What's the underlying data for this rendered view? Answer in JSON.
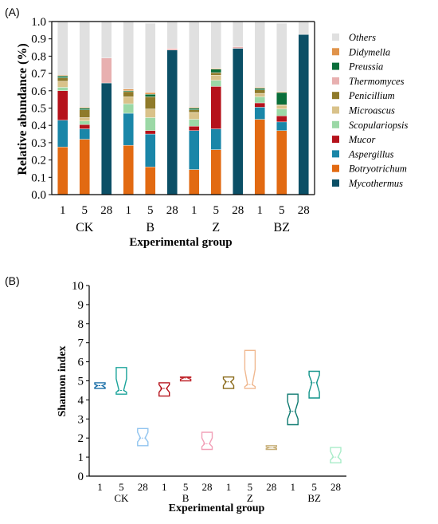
{
  "chart_data": [
    {
      "panel_label": "(A)",
      "type": "bar",
      "stacked": true,
      "xlabel": "Experimental group",
      "ylabel": "Relative abundance (%)",
      "ylim": [
        0,
        1.0
      ],
      "yticks": [
        "0.0",
        "0.1",
        "0.2",
        "0.3",
        "0.4",
        "0.5",
        "0.6",
        "0.7",
        "0.8",
        "0.9",
        "1.0"
      ],
      "categories": [
        "1",
        "5",
        "28",
        "1",
        "5",
        "28",
        "1",
        "5",
        "28",
        "1",
        "5",
        "28"
      ],
      "groups": [
        "CK",
        "B",
        "Z",
        "BZ"
      ],
      "legend_position": "right",
      "series": [
        {
          "name": "Mycothermus",
          "color": "#0b4f66",
          "values": [
            0,
            0,
            0.645,
            0,
            0,
            0.835,
            0,
            0,
            0.845,
            0,
            0,
            0.925
          ]
        },
        {
          "name": "Botryotrichum",
          "color": "#e26a12",
          "values": [
            0.275,
            0.32,
            0,
            0.285,
            0.16,
            0,
            0.145,
            0.26,
            0,
            0.435,
            0.37,
            0
          ]
        },
        {
          "name": "Aspergillus",
          "color": "#1a86a8",
          "values": [
            0.155,
            0.06,
            0,
            0.185,
            0.19,
            0,
            0.225,
            0.12,
            0,
            0.07,
            0.05,
            0
          ]
        },
        {
          "name": "Mucor",
          "color": "#b5121b",
          "values": [
            0.17,
            0.025,
            0,
            0,
            0.02,
            0,
            0.025,
            0.245,
            0,
            0.025,
            0.035,
            0
          ]
        },
        {
          "name": "Scopulariopsis",
          "color": "#9bd8a6",
          "values": [
            0.02,
            0.02,
            0,
            0.055,
            0.075,
            0,
            0.04,
            0.035,
            0,
            0.035,
            0.04,
            0
          ]
        },
        {
          "name": "Microascus",
          "color": "#d9c28a",
          "values": [
            0.035,
            0.02,
            0,
            0.04,
            0.05,
            0,
            0.04,
            0.03,
            0,
            0.02,
            0.02,
            0
          ]
        },
        {
          "name": "Penicillium",
          "color": "#8f7a2a",
          "values": [
            0.02,
            0.045,
            0,
            0.03,
            0.07,
            0,
            0.015,
            0.015,
            0,
            0.02,
            0.005,
            0
          ]
        },
        {
          "name": "Thermomyces",
          "color": "#e8b0b0",
          "values": [
            0,
            0,
            0.145,
            0,
            0,
            0.01,
            0,
            0,
            0.01,
            0,
            0,
            0
          ]
        },
        {
          "name": "Preussia",
          "color": "#0a6e3a",
          "values": [
            0.01,
            0.01,
            0,
            0.005,
            0.015,
            0,
            0.01,
            0.02,
            0,
            0.01,
            0.07,
            0
          ]
        },
        {
          "name": "Didymella",
          "color": "#e0934a",
          "values": [
            0.005,
            0.005,
            0,
            0.01,
            0.01,
            0,
            0.005,
            0.005,
            0,
            0.005,
            0.005,
            0
          ]
        },
        {
          "name": "Others",
          "color": "#e0e0e0",
          "values": [
            0.31,
            0.495,
            0.21,
            0.39,
            0.4,
            0.155,
            0.495,
            0.27,
            0.145,
            0.38,
            0.395,
            0.075
          ]
        }
      ]
    },
    {
      "panel_label": "(B)",
      "type": "violin",
      "xlabel": "Experimental group",
      "ylabel": "Shannon index",
      "ylim": [
        0,
        10
      ],
      "yticks": [
        "0",
        "1",
        "2",
        "3",
        "4",
        "5",
        "6",
        "7",
        "8",
        "9",
        "10"
      ],
      "categories": [
        "1",
        "5",
        "28",
        "1",
        "5",
        "28",
        "1",
        "5",
        "28",
        "1",
        "5",
        "28"
      ],
      "groups": [
        "CK",
        "B",
        "Z",
        "BZ"
      ],
      "colors": [
        "#1b6fa8",
        "#1aa39a",
        "#90c4ef",
        "#b5121b",
        "#c0272d",
        "#f2a0b8",
        "#8a6a1a",
        "#f0b890",
        "#c8b07a",
        "#0e7a70",
        "#12948a",
        "#a8ecc8"
      ],
      "distributions": [
        {
          "min": 4.6,
          "max": 4.9,
          "median": 4.75,
          "q1": 4.65,
          "q3": 4.82
        },
        {
          "min": 4.3,
          "max": 5.7,
          "median": 4.5,
          "q1": 4.4,
          "q3": 5.1
        },
        {
          "min": 1.6,
          "max": 2.5,
          "median": 2.0,
          "q1": 1.8,
          "q3": 2.3
        },
        {
          "min": 4.2,
          "max": 4.9,
          "median": 4.6,
          "q1": 4.4,
          "q3": 4.8
        },
        {
          "min": 5.0,
          "max": 5.2,
          "median": 5.15,
          "q1": 5.08,
          "q3": 5.18
        },
        {
          "min": 1.4,
          "max": 2.3,
          "median": 1.7,
          "q1": 1.55,
          "q3": 2.0
        },
        {
          "min": 4.6,
          "max": 5.2,
          "median": 4.95,
          "q1": 4.75,
          "q3": 5.1
        },
        {
          "min": 4.6,
          "max": 6.6,
          "median": 4.8,
          "q1": 4.7,
          "q3": 5.6
        },
        {
          "min": 1.4,
          "max": 1.6,
          "median": 1.5,
          "q1": 1.45,
          "q3": 1.55
        },
        {
          "min": 2.7,
          "max": 4.3,
          "median": 3.4,
          "q1": 3.0,
          "q3": 3.9
        },
        {
          "min": 4.1,
          "max": 5.5,
          "median": 4.9,
          "q1": 4.4,
          "q3": 5.3
        },
        {
          "min": 0.7,
          "max": 1.5,
          "median": 1.0,
          "q1": 0.85,
          "q3": 1.3
        }
      ]
    }
  ]
}
